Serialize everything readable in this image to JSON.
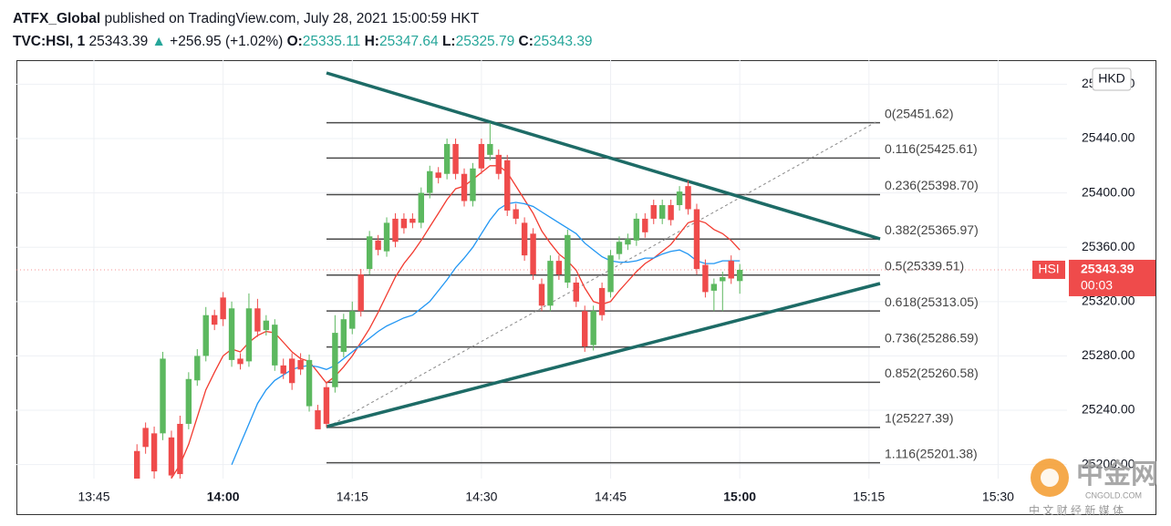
{
  "header": {
    "publisher": "ATFX_Global",
    "published": "published on TradingView.com, July 28, 2021 15:00:59 HKT",
    "symbol": "TVC:HSI, 1",
    "arrow": "▲",
    "change": "+256.95 (+1.02%)",
    "o": "O:",
    "h": "H:",
    "l": "L:",
    "c": "C:"
  },
  "chart_data": {
    "type": "candlestick",
    "currency": "HKD",
    "symbol_tag": "HSI",
    "countdown": "00:03",
    "up_color": "#5cb85f",
    "down_color": "#ef4b4b",
    "grid": true,
    "x": [
      "13:50",
      "13:51",
      "13:52",
      "13:53",
      "13:54",
      "13:55",
      "13:56",
      "13:57",
      "13:58",
      "13:59",
      "14:00",
      "14:01",
      "14:02",
      "14:03",
      "14:04",
      "14:05",
      "14:06",
      "14:07",
      "14:08",
      "14:09",
      "14:10",
      "14:11",
      "14:12",
      "14:13",
      "14:14",
      "14:15",
      "14:16",
      "14:17",
      "14:18",
      "14:19",
      "14:20",
      "14:21",
      "14:22",
      "14:23",
      "14:24",
      "14:25",
      "14:26",
      "14:27",
      "14:28",
      "14:29",
      "14:30",
      "14:31",
      "14:32",
      "14:33",
      "14:34",
      "14:35",
      "14:36",
      "14:37",
      "14:38",
      "14:39",
      "14:40",
      "14:41",
      "14:42",
      "14:43",
      "14:44",
      "14:45",
      "14:46",
      "14:47",
      "14:48",
      "14:49",
      "14:50",
      "14:51",
      "14:52",
      "14:53",
      "14:54",
      "14:55",
      "14:56",
      "14:57",
      "14:58",
      "14:59",
      "15:00"
    ],
    "open": [
      25210,
      25227,
      25223,
      25223,
      25220,
      25230,
      25230,
      25262,
      25280,
      25310,
      25323,
      25277,
      25278,
      25276,
      25315,
      25299,
      25273,
      25273,
      25278,
      25277,
      25243,
      25240,
      25257,
      25257,
      25283,
      25300,
      25340,
      25344,
      25365,
      25357,
      25381,
      25381,
      25381,
      25378,
      25400,
      25415,
      25414,
      25436,
      25414,
      25394,
      25436,
      25428,
      25428,
      25424,
      25388,
      25378,
      25370,
      25333,
      25317,
      25350,
      25334,
      25334,
      25313,
      25288,
      25330,
      25327,
      25355,
      25362,
      25365,
      25381,
      25391,
      25381,
      25391,
      25391,
      25405,
      25388,
      25347,
      25328,
      25335,
      25350,
      25335.11
    ],
    "high": [
      25215,
      25231,
      25228,
      25283,
      25225,
      25236,
      25268,
      25285,
      25316,
      25314,
      25327,
      25320,
      25282,
      25326,
      25322,
      25310,
      25307,
      25278,
      25282,
      25282,
      25281,
      25244,
      25261,
      25310,
      25311,
      25320,
      25344,
      25372,
      25369,
      25382,
      25385,
      25385,
      25385,
      25404,
      25420,
      25419,
      25440,
      25440,
      25418,
      25422,
      25440,
      25451.62,
      25432,
      25428,
      25392,
      25382,
      25374,
      25337,
      25354,
      25354,
      25373,
      25338,
      25317,
      25317,
      25334,
      25358,
      25368,
      25370,
      25385,
      25385,
      25395,
      25395,
      25395,
      25405,
      25409,
      25392,
      25351,
      25337,
      25342,
      25354,
      25347.64
    ],
    "low": [
      25180,
      25208,
      25188,
      25218,
      25186,
      25188,
      25226,
      25258,
      25276,
      25299,
      25302,
      25272,
      25270,
      25272,
      25294,
      25295,
      25269,
      25263,
      25255,
      25266,
      25239,
      25228,
      25227.39,
      25253,
      25279,
      25296,
      25309,
      25340,
      25354,
      25353,
      25360,
      25370,
      25374,
      25374,
      25396,
      25407,
      25410,
      25410,
      25390,
      25390,
      25414,
      25424,
      25410,
      25383,
      25377,
      25350,
      25336,
      25313,
      25313,
      25336,
      25330,
      25316,
      25283,
      25284,
      25306,
      25323,
      25351,
      25358,
      25361,
      25367,
      25377,
      25377,
      25376,
      25387,
      25384,
      25340,
      25323,
      25313,
      25313,
      25333,
      25325.79
    ],
    "close": [
      25185,
      25213,
      25195,
      25278,
      25192,
      25193,
      25263,
      25280,
      25310,
      25303,
      25307,
      25315,
      25274,
      25315,
      25298,
      25306,
      25303,
      25267,
      25260,
      25270,
      25277,
      25226,
      25230,
      25297,
      25307,
      25313,
      25313,
      25368,
      25358,
      25378,
      25364,
      25374,
      25378,
      25400,
      25416,
      25411,
      25436,
      25414,
      25394,
      25418,
      25418,
      25436,
      25414,
      25387,
      25381,
      25354,
      25340,
      25317,
      25350,
      25340,
      25369,
      25320,
      25287,
      25313,
      25310,
      25354,
      25364,
      25366,
      25381,
      25371,
      25381,
      25391,
      25380,
      25401,
      25388,
      25344,
      25327,
      25333,
      25338,
      25337,
      25343.39
    ],
    "series": [
      {
        "color": "#f23b30",
        "values": [
          null,
          null,
          null,
          null,
          25190,
          25200,
          25215,
          25235,
          25255,
          25268,
          25280,
          25285,
          25283,
          25290,
          25295,
          25298,
          25297,
          25290,
          25283,
          25278,
          25276,
          25268,
          25260,
          25265,
          25272,
          25280,
          25290,
          25300,
          25312,
          25325,
          25338,
          25348,
          25356,
          25365,
          25375,
          25385,
          25395,
          25403,
          25405,
          25410,
          25415,
          25420,
          25420,
          25415,
          25405,
          25395,
          25385,
          25372,
          25363,
          25355,
          25350,
          25343,
          25330,
          25320,
          25318,
          25320,
          25328,
          25335,
          25342,
          25348,
          25352,
          25357,
          25362,
          25370,
          25378,
          25380,
          25378,
          25373,
          25370,
          25365,
          25358
        ]
      },
      {
        "color": "#2196f3",
        "values": [
          null,
          null,
          null,
          null,
          null,
          null,
          null,
          null,
          null,
          null,
          null,
          25200,
          25215,
          25230,
          25245,
          25255,
          25262,
          25266,
          25270,
          25272,
          25273,
          25272,
          25270,
          25273,
          25278,
          25283,
          25288,
          25293,
          25298,
          25302,
          25305,
          25308,
          25310,
          25315,
          25320,
          25328,
          25336,
          25345,
          25352,
          25360,
          25370,
          25380,
          25388,
          25392,
          25393,
          25392,
          25390,
          25386,
          25382,
          25378,
          25374,
          25370,
          25363,
          25358,
          25353,
          25350,
          25349,
          25349,
          25350,
          25352,
          25352,
          25355,
          25357,
          25358,
          25355,
          25350,
          25348,
          25348,
          25350,
          25350,
          25350
        ]
      }
    ],
    "fib_levels": [
      {
        "value": 25451.62,
        "label": "0(25451.62)"
      },
      {
        "value": 25425.61,
        "label": "0.116(25425.61)"
      },
      {
        "value": 25398.7,
        "label": "0.236(25398.70)"
      },
      {
        "value": 25365.97,
        "label": "0.382(25365.97)"
      },
      {
        "value": 25339.51,
        "label": "0.5(25339.51)"
      },
      {
        "value": 25313.05,
        "label": "0.618(25313.05)"
      },
      {
        "value": 25286.59,
        "label": "0.736(25286.59)"
      },
      {
        "value": 25260.58,
        "label": "0.852(25260.58)"
      },
      {
        "value": 25227.39,
        "label": "1(25227.39)"
      },
      {
        "value": 25201.38,
        "label": "1.116(25201.38)"
      }
    ],
    "xlim": [
      "13:36",
      "15:38"
    ],
    "xticks": [
      "13:45",
      "14:00",
      "14:15",
      "14:30",
      "14:45",
      "15:00",
      "15:15",
      "15:30"
    ],
    "ylim": [
      25189.7,
      25497.7
    ],
    "yticks": [
      {
        "value": 25200,
        "label": "25200.00"
      },
      {
        "value": 25240,
        "label": "25240.00"
      },
      {
        "value": 25280,
        "label": "25280.00"
      },
      {
        "value": 25320,
        "label": "25320.00"
      },
      {
        "value": 25360,
        "label": "25360.00"
      },
      {
        "value": 25400,
        "label": "25400.00"
      },
      {
        "value": 25440,
        "label": "25440.00"
      },
      {
        "value": 25480,
        "label": "25480.00"
      }
    ]
  },
  "watermark": {
    "brand": "中金网",
    "domain": "CNGOLD.COM",
    "tagline": "中 文 财 经 新 媒 体"
  }
}
